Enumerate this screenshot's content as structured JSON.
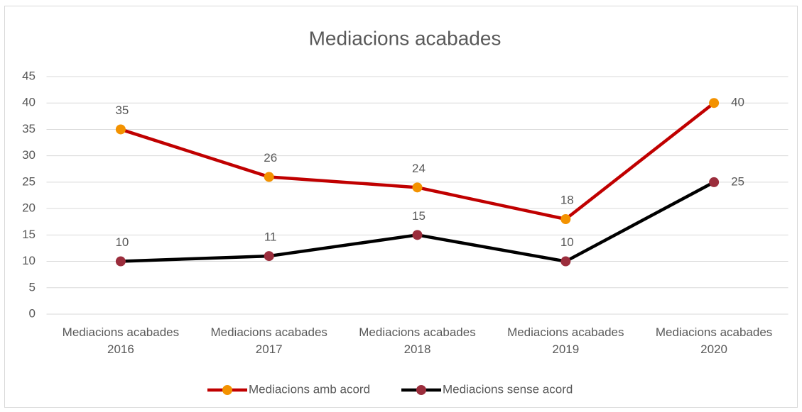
{
  "chart_data": {
    "type": "line",
    "title": "Mediacions acabades",
    "categories": [
      "Mediacions acabades 2016",
      "Mediacions acabades 2017",
      "Mediacions acabades 2018",
      "Mediacions acabades 2019",
      "Mediacions acabades 2020"
    ],
    "series": [
      {
        "name": "Mediacions amb acord",
        "color": "#c00000",
        "marker_color": "#f39200",
        "values": [
          35,
          26,
          24,
          18,
          40
        ]
      },
      {
        "name": "Mediacions sense acord",
        "color": "#000000",
        "marker_color": "#9b2d3c",
        "values": [
          10,
          11,
          15,
          10,
          25
        ]
      }
    ],
    "ylim": [
      0,
      45
    ],
    "yticks": [
      0,
      5,
      10,
      15,
      20,
      25,
      30,
      35,
      40,
      45
    ],
    "grid": true,
    "legend": "bottom"
  }
}
